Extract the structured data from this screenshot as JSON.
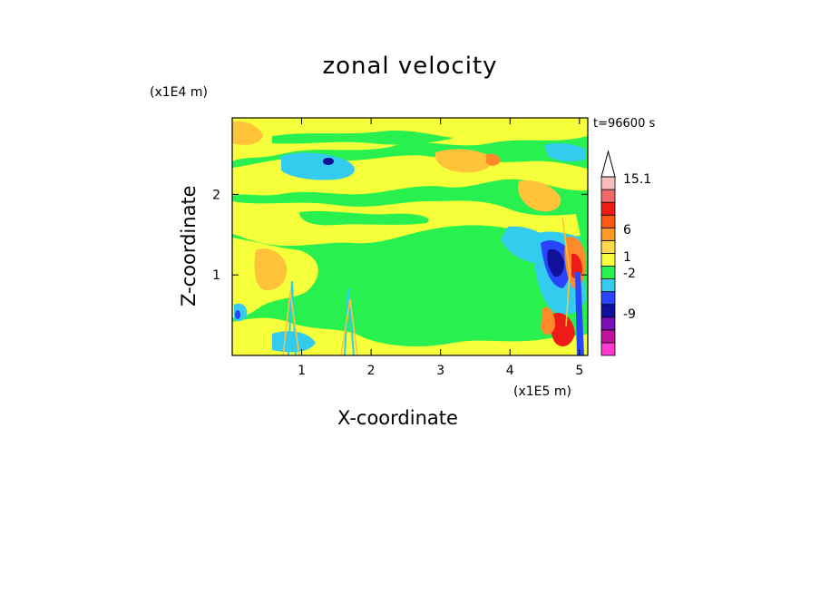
{
  "chart_data": {
    "type": "heatmap",
    "title": "zonal velocity",
    "xlabel": "X-coordinate",
    "ylabel": "Z-coordinate",
    "x_scale_label": "(x1E5 m)",
    "z_scale_label": "(x1E4 m)",
    "time_label": "t=96600 s",
    "xlim": [
      0,
      5.12
    ],
    "ylim": [
      0,
      2.95
    ],
    "x_ticks": [
      1,
      2,
      3,
      4,
      5
    ],
    "y_ticks": [
      1,
      2
    ],
    "colorbar": {
      "labels": [
        "15.1",
        "6",
        "1",
        "-2",
        "-9"
      ],
      "colors": [
        "#ff3bd0",
        "#c0139c",
        "#7a0fb8",
        "#10109a",
        "#2a45ff",
        "#33ccee",
        "#27f04f",
        "#f5ff3a",
        "#ffd84d",
        "#ff9a26",
        "#ff5a10",
        "#ee1c16",
        "#f06a6a",
        "#f9bcbc"
      ],
      "extend": "max"
    }
  },
  "colors": {
    "green": "#27f04f",
    "yellow": "#f5ff3a",
    "cyan": "#33ccee",
    "orange": "#ffc33a",
    "dark_orange": "#ff8a2a",
    "blue": "#2a45ff",
    "navy": "#10109a",
    "red": "#ee1c16"
  }
}
